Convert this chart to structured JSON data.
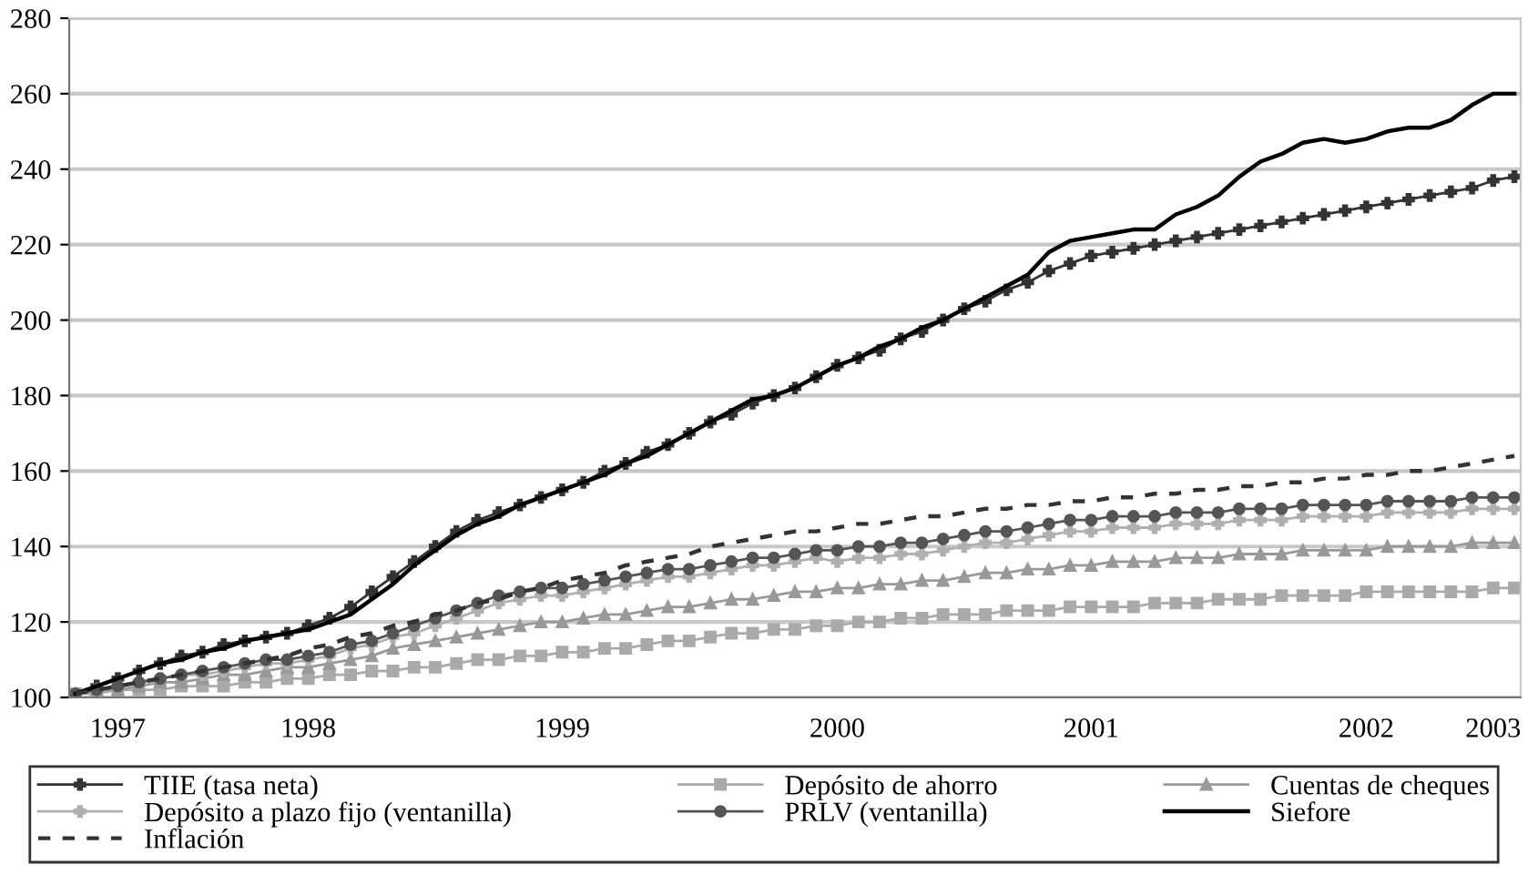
{
  "chart_data": {
    "type": "line",
    "categories": [
      null,
      null,
      "1997",
      null,
      null,
      null,
      null,
      null,
      null,
      null,
      null,
      "1998",
      null,
      null,
      null,
      null,
      null,
      null,
      null,
      null,
      null,
      null,
      null,
      "1999",
      null,
      null,
      null,
      null,
      null,
      null,
      null,
      null,
      null,
      null,
      null,
      null,
      "2000",
      null,
      null,
      null,
      null,
      null,
      null,
      null,
      null,
      null,
      null,
      null,
      "2001",
      null,
      null,
      null,
      null,
      null,
      null,
      null,
      null,
      null,
      null,
      null,
      null,
      "2002",
      null,
      null,
      null,
      null,
      null,
      "2003",
      null
    ],
    "ylim": [
      100,
      280
    ],
    "yticks": [
      100,
      120,
      140,
      160,
      180,
      200,
      220,
      240,
      260,
      280
    ],
    "grid": "y",
    "legend": "bottom",
    "series": [
      {
        "name": "TIIE (tasa neta)",
        "color": "#333333",
        "marker": "cross",
        "line_style": "solid",
        "values": [
          101,
          103,
          105,
          107,
          109,
          111,
          112,
          114,
          115,
          116,
          117,
          119,
          121,
          124,
          128,
          132,
          136,
          140,
          144,
          147,
          149,
          151,
          153,
          155,
          157,
          160,
          162,
          165,
          167,
          170,
          173,
          175,
          178,
          180,
          182,
          185,
          188,
          190,
          192,
          195,
          197,
          200,
          203,
          205,
          208,
          210,
          213,
          215,
          217,
          218,
          219,
          220,
          221,
          222,
          223,
          224,
          225,
          226,
          227,
          228,
          229,
          230,
          231,
          232,
          233,
          234,
          235,
          237,
          238
        ]
      },
      {
        "name": "Depósito de ahorro",
        "color": "#aaaaaa",
        "marker": "square",
        "line_style": "solid",
        "values": [
          101,
          101,
          102,
          102,
          102,
          103,
          103,
          103,
          104,
          104,
          105,
          105,
          106,
          106,
          107,
          107,
          108,
          108,
          109,
          110,
          110,
          111,
          111,
          112,
          112,
          113,
          113,
          114,
          115,
          115,
          116,
          117,
          117,
          118,
          118,
          119,
          119,
          120,
          120,
          121,
          121,
          122,
          122,
          122,
          123,
          123,
          123,
          124,
          124,
          124,
          124,
          125,
          125,
          125,
          126,
          126,
          126,
          127,
          127,
          127,
          127,
          128,
          128,
          128,
          128,
          128,
          128,
          129,
          129
        ]
      },
      {
        "name": "Cuentas de cheques",
        "color": "#999999",
        "marker": "triangle",
        "line_style": "solid",
        "values": [
          101,
          102,
          102,
          103,
          104,
          104,
          105,
          106,
          106,
          107,
          108,
          108,
          109,
          110,
          111,
          113,
          114,
          115,
          116,
          117,
          118,
          119,
          120,
          120,
          121,
          122,
          122,
          123,
          124,
          124,
          125,
          126,
          126,
          127,
          128,
          128,
          129,
          129,
          130,
          130,
          131,
          131,
          132,
          133,
          133,
          134,
          134,
          135,
          135,
          136,
          136,
          136,
          137,
          137,
          137,
          138,
          138,
          138,
          139,
          139,
          139,
          139,
          140,
          140,
          140,
          140,
          141,
          141,
          141
        ]
      },
      {
        "name": "Depósito a plazo fijo (ventanilla)",
        "color": "#b0b0b0",
        "marker": "cross",
        "line_style": "solid",
        "values": [
          101,
          102,
          103,
          104,
          105,
          106,
          106,
          107,
          108,
          109,
          109,
          110,
          111,
          113,
          114,
          116,
          117,
          119,
          121,
          123,
          125,
          126,
          127,
          127,
          128,
          129,
          130,
          131,
          132,
          132,
          133,
          134,
          135,
          135,
          136,
          137,
          136,
          137,
          137,
          138,
          138,
          139,
          140,
          141,
          141,
          142,
          143,
          144,
          144,
          145,
          145,
          145,
          146,
          146,
          146,
          147,
          147,
          147,
          148,
          148,
          148,
          148,
          149,
          149,
          149,
          149,
          150,
          150,
          150
        ]
      },
      {
        "name": "PRLV (ventanilla)",
        "color": "#555555",
        "marker": "circle",
        "line_style": "solid",
        "values": [
          101,
          102,
          103,
          104,
          105,
          106,
          107,
          108,
          109,
          110,
          110,
          111,
          112,
          114,
          115,
          117,
          119,
          121,
          123,
          125,
          127,
          128,
          129,
          129,
          130,
          131,
          132,
          133,
          134,
          134,
          135,
          136,
          137,
          137,
          138,
          139,
          139,
          140,
          140,
          141,
          141,
          142,
          143,
          144,
          144,
          145,
          146,
          147,
          147,
          148,
          148,
          148,
          149,
          149,
          149,
          150,
          150,
          150,
          151,
          151,
          151,
          151,
          152,
          152,
          152,
          152,
          153,
          153,
          153
        ]
      },
      {
        "name": "Siefore",
        "color": "#000000",
        "marker": "none",
        "line_style": "solid",
        "values": [
          101,
          103,
          105,
          107,
          109,
          110,
          112,
          113,
          115,
          116,
          117,
          118,
          120,
          122,
          126,
          130,
          135,
          139,
          143,
          146,
          148,
          151,
          153,
          155,
          157,
          159,
          162,
          164,
          167,
          170,
          173,
          176,
          179,
          180,
          182,
          185,
          188,
          190,
          193,
          195,
          198,
          200,
          203,
          206,
          209,
          212,
          218,
          221,
          222,
          223,
          224,
          224,
          228,
          230,
          233,
          238,
          242,
          244,
          247,
          248,
          247,
          248,
          250,
          251,
          251,
          253,
          257,
          260,
          260
        ]
      },
      {
        "name": "Inflación",
        "color": "#333333",
        "marker": "none",
        "line_style": "dashed",
        "values": [
          101,
          102,
          103,
          104,
          105,
          106,
          107,
          108,
          109,
          110,
          111,
          113,
          114,
          116,
          117,
          119,
          120,
          122,
          123,
          125,
          126,
          128,
          129,
          131,
          132,
          133,
          135,
          136,
          137,
          138,
          140,
          141,
          142,
          143,
          144,
          144,
          145,
          146,
          146,
          147,
          148,
          148,
          149,
          150,
          150,
          151,
          151,
          152,
          152,
          153,
          153,
          154,
          154,
          155,
          155,
          156,
          156,
          157,
          157,
          158,
          158,
          159,
          159,
          160,
          160,
          161,
          162,
          163,
          164
        ]
      }
    ]
  }
}
